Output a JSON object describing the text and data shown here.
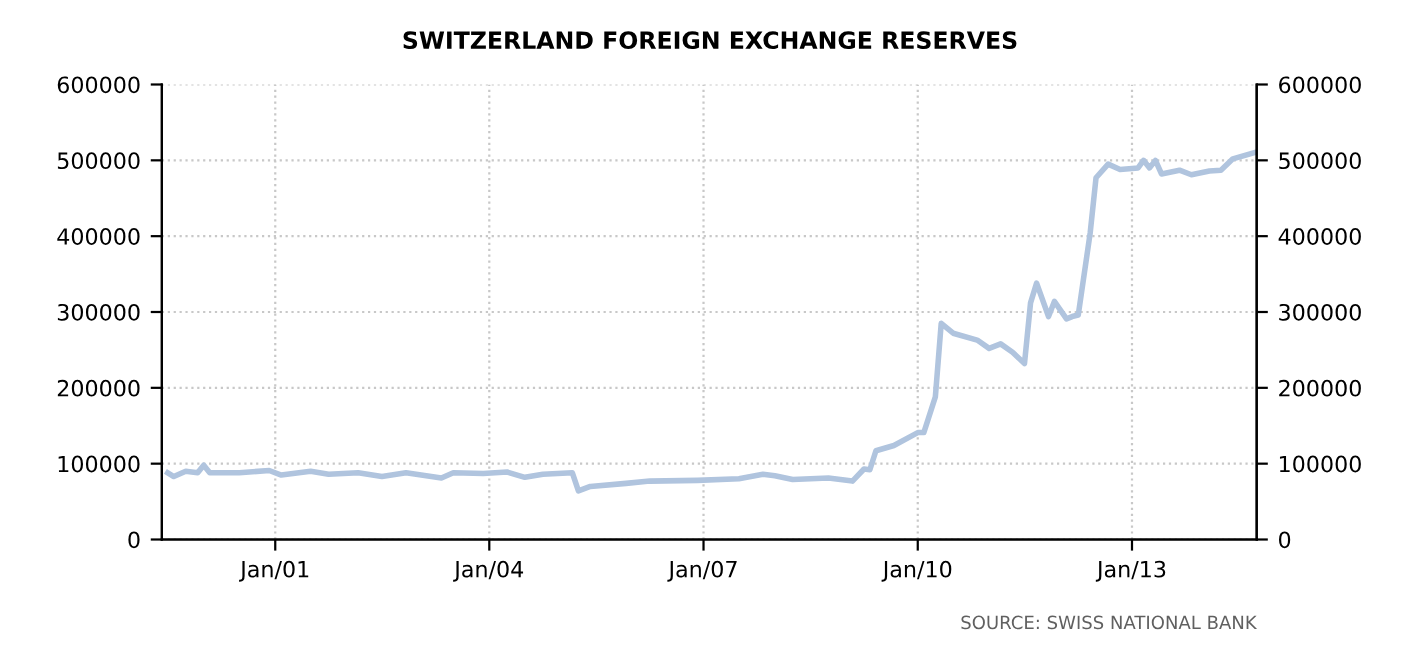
{
  "chart_data": {
    "type": "line",
    "title": "SWITZERLAND FOREIGN EXCHANGE RESERVES",
    "annotations": [
      "SOURCE: SWISS NATIONAL BANK"
    ],
    "series": [
      {
        "color": "#b0c4de",
        "x": [
          "1999-07",
          "1999-08",
          "1999-10",
          "1999-12",
          "2000-01",
          "2000-02",
          "2000-07",
          "2000-12",
          "2001-02",
          "2001-07",
          "2001-10",
          "2002-03",
          "2002-07",
          "2002-11",
          "2003-05",
          "2003-07",
          "2003-12",
          "2004-04",
          "2004-07",
          "2004-10",
          "2005-03",
          "2005-04",
          "2005-06",
          "2005-12",
          "2006-04",
          "2006-12",
          "2007-07",
          "2007-11",
          "2008-01",
          "2008-04",
          "2008-10",
          "2009-02",
          "2009-04",
          "2009-05",
          "2009-06",
          "2009-09",
          "2010-01",
          "2010-02",
          "2010-04",
          "2010-05",
          "2010-07",
          "2010-11",
          "2011-01",
          "2011-03",
          "2011-05",
          "2011-07",
          "2011-08",
          "2011-09",
          "2011-11",
          "2011-12",
          "2012-02",
          "2012-03",
          "2012-04",
          "2012-06",
          "2012-07",
          "2012-09",
          "2012-11",
          "2013-02",
          "2013-03",
          "2013-04",
          "2013-05",
          "2013-06",
          "2013-09",
          "2013-11",
          "2014-02",
          "2014-04",
          "2014-06",
          "2014-10"
        ],
        "values": [
          88000,
          83000,
          90000,
          88000,
          98000,
          88000,
          88000,
          91000,
          85000,
          90000,
          86000,
          88000,
          83000,
          88000,
          81000,
          88000,
          87000,
          89000,
          82000,
          86000,
          88000,
          64000,
          70000,
          74000,
          77000,
          78000,
          80000,
          86000,
          84000,
          79000,
          81000,
          77000,
          93000,
          92000,
          117000,
          124000,
          141000,
          141000,
          188000,
          285000,
          272000,
          263000,
          252000,
          258000,
          247000,
          232000,
          312000,
          338000,
          294000,
          314000,
          291000,
          294000,
          296000,
          404000,
          477000,
          495000,
          488000,
          490000,
          500000,
          490000,
          500000,
          482000,
          487000,
          481000,
          486000,
          487000,
          502000,
          511000
        ]
      }
    ],
    "xlim": [
      "1999-06",
      "2014-10"
    ],
    "xticks": [
      {
        "value": "2001-01",
        "label": "Jan/01"
      },
      {
        "value": "2004-01",
        "label": "Jan/04"
      },
      {
        "value": "2007-01",
        "label": "Jan/07"
      },
      {
        "value": "2010-01",
        "label": "Jan/10"
      },
      {
        "value": "2013-01",
        "label": "Jan/13"
      }
    ],
    "ylim": [
      0,
      600000
    ],
    "yticks": [
      0,
      100000,
      200000,
      300000,
      400000,
      500000,
      600000
    ],
    "y2lim": [
      0,
      600000
    ],
    "y2ticks": [
      0,
      100000,
      200000,
      300000,
      400000,
      500000,
      600000
    ],
    "grid": true,
    "line_style": "solid",
    "marker": "none"
  }
}
